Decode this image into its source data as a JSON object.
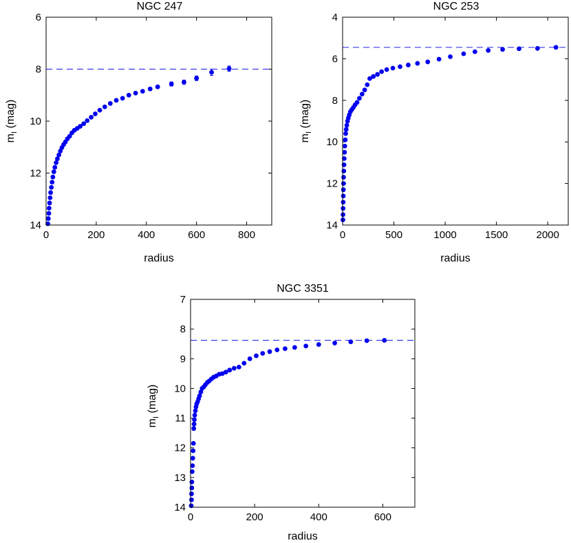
{
  "chart_data": [
    {
      "type": "scatter",
      "title": "NGC 247",
      "xlabel": "radius",
      "ylabel_main": "m",
      "ylabel_sub": "I",
      "ylabel_unit": " (mag)",
      "xlim": [
        0,
        900
      ],
      "ylim": [
        6,
        14
      ],
      "y_reversed": true,
      "xticks": [
        0,
        200,
        400,
        600,
        800
      ],
      "yticks": [
        6,
        8,
        10,
        12,
        14
      ],
      "reference_line": 8.0,
      "point_color": "#0000ee",
      "line_color": "#3a3aee",
      "x": [
        7,
        9,
        11,
        12,
        14,
        16,
        18,
        21,
        24,
        27,
        31,
        35,
        40,
        45,
        51,
        57,
        63,
        70,
        77,
        85,
        94,
        103,
        113,
        124,
        136,
        150,
        164,
        180,
        196,
        214,
        234,
        256,
        280,
        305,
        330,
        357,
        385,
        415,
        445,
        500,
        550,
        600,
        660,
        730
      ],
      "y": [
        13.95,
        13.75,
        13.55,
        13.35,
        13.15,
        12.95,
        12.75,
        12.55,
        12.35,
        12.15,
        11.95,
        11.78,
        11.6,
        11.45,
        11.3,
        11.15,
        11.02,
        10.9,
        10.8,
        10.68,
        10.58,
        10.45,
        10.35,
        10.28,
        10.2,
        10.1,
        9.98,
        9.85,
        9.72,
        9.58,
        9.45,
        9.32,
        9.2,
        9.12,
        9.0,
        8.92,
        8.85,
        8.76,
        8.68,
        8.57,
        8.5,
        8.35,
        8.12,
        7.98
      ],
      "yerr": [
        0,
        0,
        0,
        0,
        0,
        0,
        0,
        0,
        0,
        0,
        0,
        0,
        0,
        0,
        0,
        0,
        0,
        0,
        0,
        0,
        0,
        0,
        0,
        0,
        0,
        0,
        0,
        0,
        0,
        0,
        0,
        0,
        0,
        0,
        0,
        0,
        0,
        0,
        0,
        0.08,
        0.08,
        0.09,
        0.12,
        0.1
      ]
    },
    {
      "type": "scatter",
      "title": "NGC 253",
      "xlabel": "radius",
      "ylabel_main": "m",
      "ylabel_sub": "I",
      "ylabel_unit": " (mag)",
      "xlim": [
        0,
        2200
      ],
      "ylim": [
        4,
        14
      ],
      "y_reversed": true,
      "xticks": [
        0,
        500,
        1000,
        1500,
        2000
      ],
      "yticks": [
        4,
        6,
        8,
        10,
        12,
        14
      ],
      "reference_line": 5.45,
      "point_color": "#0000ee",
      "line_color": "#3a3aee",
      "x": [
        3,
        4,
        5,
        6,
        7,
        8,
        9,
        10,
        12,
        14,
        16,
        19,
        22,
        26,
        30,
        35,
        41,
        48,
        56,
        65,
        76,
        89,
        104,
        121,
        141,
        164,
        190,
        215,
        240,
        265,
        300,
        340,
        380,
        430,
        490,
        560,
        640,
        730,
        830,
        940,
        1050,
        1180,
        1290,
        1420,
        1560,
        1720,
        1900,
        2080
      ],
      "y": [
        13.75,
        13.5,
        13.2,
        12.9,
        12.6,
        12.3,
        12.0,
        11.7,
        11.4,
        11.1,
        10.8,
        10.5,
        10.2,
        9.9,
        9.6,
        9.4,
        9.2,
        9.0,
        8.85,
        8.7,
        8.55,
        8.45,
        8.35,
        8.22,
        8.1,
        7.9,
        7.7,
        7.5,
        7.25,
        6.95,
        6.85,
        6.75,
        6.62,
        6.52,
        6.45,
        6.38,
        6.3,
        6.22,
        6.15,
        6.02,
        5.9,
        5.76,
        5.66,
        5.6,
        5.55,
        5.52,
        5.5,
        5.45
      ],
      "yerr": [
        0,
        0,
        0,
        0,
        0,
        0,
        0,
        0,
        0,
        0,
        0,
        0,
        0,
        0,
        0,
        0,
        0,
        0,
        0,
        0,
        0,
        0,
        0,
        0,
        0,
        0,
        0,
        0,
        0,
        0,
        0,
        0,
        0,
        0,
        0,
        0,
        0,
        0,
        0,
        0,
        0,
        0,
        0,
        0,
        0,
        0,
        0,
        0
      ]
    },
    {
      "type": "scatter",
      "title": "NGC 3351",
      "xlabel": "radius",
      "ylabel_main": "m",
      "ylabel_sub": "I",
      "ylabel_unit": " (mag)",
      "xlim": [
        0,
        700
      ],
      "ylim": [
        7,
        14
      ],
      "y_reversed": true,
      "xticks": [
        0,
        200,
        400,
        600
      ],
      "yticks": [
        7,
        8,
        9,
        10,
        11,
        12,
        13,
        14
      ],
      "reference_line": 8.38,
      "point_color": "#0000ee",
      "line_color": "#3a3aee",
      "x": [
        2,
        3,
        3,
        4,
        4,
        5,
        6,
        7,
        8,
        9,
        10,
        11,
        12,
        13,
        15,
        17,
        19,
        22,
        25,
        28,
        32,
        36,
        41,
        46,
        52,
        58,
        65,
        72,
        80,
        89,
        99,
        110,
        122,
        136,
        151,
        167,
        185,
        205,
        225,
        247,
        270,
        295,
        325,
        360,
        400,
        450,
        500,
        550,
        605
      ],
      "y": [
        13.95,
        13.75,
        13.55,
        13.35,
        13.15,
        12.8,
        12.6,
        12.35,
        12.1,
        11.85,
        11.35,
        11.2,
        11.05,
        10.9,
        10.75,
        10.62,
        10.52,
        10.45,
        10.35,
        10.25,
        10.12,
        10.0,
        9.95,
        9.88,
        9.8,
        9.75,
        9.68,
        9.62,
        9.58,
        9.52,
        9.5,
        9.45,
        9.38,
        9.32,
        9.28,
        9.15,
        9.0,
        8.9,
        8.82,
        8.76,
        8.7,
        8.66,
        8.62,
        8.57,
        8.52,
        8.47,
        8.43,
        8.39,
        8.38
      ],
      "yerr": [
        0,
        0,
        0,
        0,
        0,
        0,
        0,
        0,
        0,
        0,
        0,
        0,
        0,
        0,
        0,
        0,
        0,
        0,
        0,
        0,
        0,
        0,
        0,
        0,
        0,
        0,
        0,
        0,
        0,
        0,
        0,
        0,
        0,
        0,
        0,
        0,
        0,
        0,
        0,
        0,
        0,
        0,
        0,
        0,
        0,
        0,
        0,
        0,
        0
      ]
    }
  ]
}
